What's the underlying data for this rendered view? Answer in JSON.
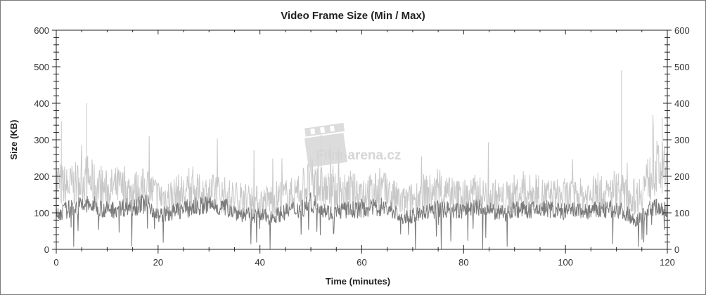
{
  "chart_data": {
    "type": "line",
    "title": "Video Frame Size (Min / Max)",
    "xlabel": "Time (minutes)",
    "ylabel": "Size (KB)",
    "xlim": [
      0,
      120
    ],
    "ylim": [
      0,
      600
    ],
    "x_ticks": [
      "0",
      "20",
      "40",
      "60",
      "80",
      "100",
      "120"
    ],
    "y_ticks": [
      "0",
      "100",
      "200",
      "300",
      "400",
      "500",
      "600"
    ],
    "grid": false,
    "legend": "none",
    "x": [
      0,
      2,
      4,
      6,
      8,
      10,
      12,
      14,
      16,
      18,
      20,
      22,
      24,
      26,
      28,
      30,
      32,
      34,
      36,
      38,
      40,
      42,
      44,
      46,
      48,
      50,
      52,
      54,
      56,
      58,
      60,
      62,
      64,
      66,
      68,
      70,
      72,
      74,
      76,
      78,
      80,
      82,
      84,
      86,
      88,
      90,
      92,
      94,
      96,
      98,
      100,
      102,
      104,
      106,
      108,
      110,
      112,
      114,
      116,
      118,
      120
    ],
    "series": [
      {
        "role": "max",
        "color": "#c8c8c8",
        "values": [
          220,
          200,
          210,
          230,
          200,
          190,
          200,
          190,
          190,
          200,
          170,
          170,
          180,
          180,
          180,
          180,
          180,
          170,
          160,
          160,
          150,
          160,
          170,
          170,
          190,
          220,
          200,
          180,
          180,
          180,
          190,
          180,
          190,
          170,
          150,
          160,
          180,
          180,
          180,
          170,
          170,
          180,
          170,
          170,
          160,
          180,
          180,
          180,
          170,
          170,
          170,
          170,
          170,
          180,
          170,
          200,
          170,
          170,
          220,
          260,
          250
        ],
        "peaks": [
          {
            "x": 1,
            "y": 350
          },
          {
            "x": 6,
            "y": 400
          },
          {
            "x": 52,
            "y": 320
          },
          {
            "x": 111,
            "y": 490
          },
          {
            "x": 119,
            "y": 360
          }
        ]
      },
      {
        "role": "min",
        "color": "#7a7a7a",
        "values": [
          100,
          110,
          120,
          125,
          120,
          110,
          115,
          120,
          125,
          130,
          95,
          100,
          110,
          115,
          120,
          125,
          120,
          115,
          100,
          95,
          95,
          90,
          100,
          110,
          115,
          130,
          120,
          100,
          110,
          110,
          115,
          115,
          120,
          110,
          85,
          95,
          100,
          110,
          115,
          105,
          110,
          120,
          110,
          105,
          100,
          115,
          110,
          110,
          115,
          110,
          105,
          110,
          105,
          110,
          110,
          115,
          100,
          80,
          110,
          120,
          110
        ]
      }
    ]
  },
  "watermark": "Film-arena.cz"
}
